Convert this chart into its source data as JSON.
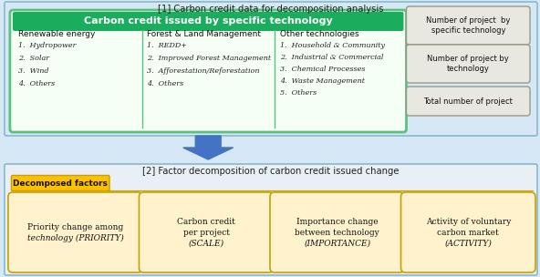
{
  "title1": "[1] Carbon credit data for decomposition analysis",
  "title2": "[2] Factor decomposition of carbon credit issued change",
  "green_header": "Carbon credit issued by specific technology",
  "col1_title": "Renewable energy",
  "col1_items": [
    "1.  Hydropower",
    "2.  Solar",
    "3.  Wind",
    "4.  Others"
  ],
  "col2_title": "Forest & Land Management",
  "col2_items": [
    "1.  REDD+",
    "2.  Improved Forest Management",
    "3.  Afforestation/Reforestation",
    "4.  Others"
  ],
  "col3_title": "Other technologies",
  "col3_items": [
    "1.  Household & Community",
    "2.  Industrial & Commercial",
    "3.  Chemical Processes",
    "4.  Waste Management",
    "5.  Others"
  ],
  "right_boxes": [
    "Number of project  by\nspecific technology",
    "Number of project by\ntechnology",
    "Total number of project"
  ],
  "decomposed_label": "Decomposed factors",
  "factor_lines": [
    [
      "Priority change among",
      "technology (",
      "PRIORITY",
      ")"
    ],
    [
      "Carbon credit",
      "per project",
      "(",
      "SCALE",
      ")"
    ],
    [
      "Importance change",
      "between technology",
      "(",
      "IMPORTANCE",
      ")"
    ],
    [
      "Activity of voluntary",
      "carbon market",
      "(",
      "ACTIVITY",
      ")"
    ]
  ],
  "bg_top": "#d6e8f5",
  "bg_bot": "#d6e6f0",
  "green_header_bg": "#1aad5e",
  "green_inner_border": "#5abf7f",
  "green_inner_bg": "#f5fff5",
  "right_box_bg": "#e8e8e0",
  "right_box_border": "#999988",
  "arrow_color": "#4472c4",
  "yellow_label_bg": "#ffc000",
  "yellow_label_border": "#c8a000",
  "yellow_box_bg": "#fff2cc",
  "yellow_box_border": "#c8a000",
  "outer_border": "#8ab8cc",
  "divider_color": "#5abf7f"
}
